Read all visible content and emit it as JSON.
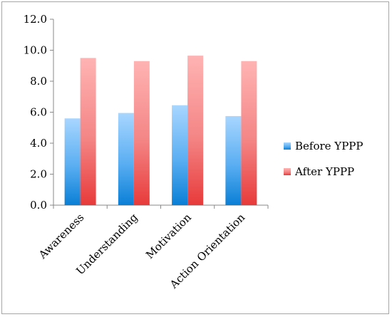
{
  "chart_data": {
    "type": "bar",
    "categories": [
      "Awareness",
      "Understanding",
      "Motivation",
      "Action Orientation"
    ],
    "series": [
      {
        "name": "Before YPPP",
        "values": [
          5.6,
          5.95,
          6.45,
          5.75
        ],
        "color": "#5aaef2"
      },
      {
        "name": "After YPPP",
        "values": [
          9.5,
          9.3,
          9.65,
          9.3
        ],
        "color": "#f48585"
      }
    ],
    "yticks": [
      "0.0",
      "2.0",
      "4.0",
      "6.0",
      "8.0",
      "10.0",
      "12.0"
    ],
    "ylim": [
      0,
      12
    ],
    "grid": false,
    "legend_position": "right"
  }
}
